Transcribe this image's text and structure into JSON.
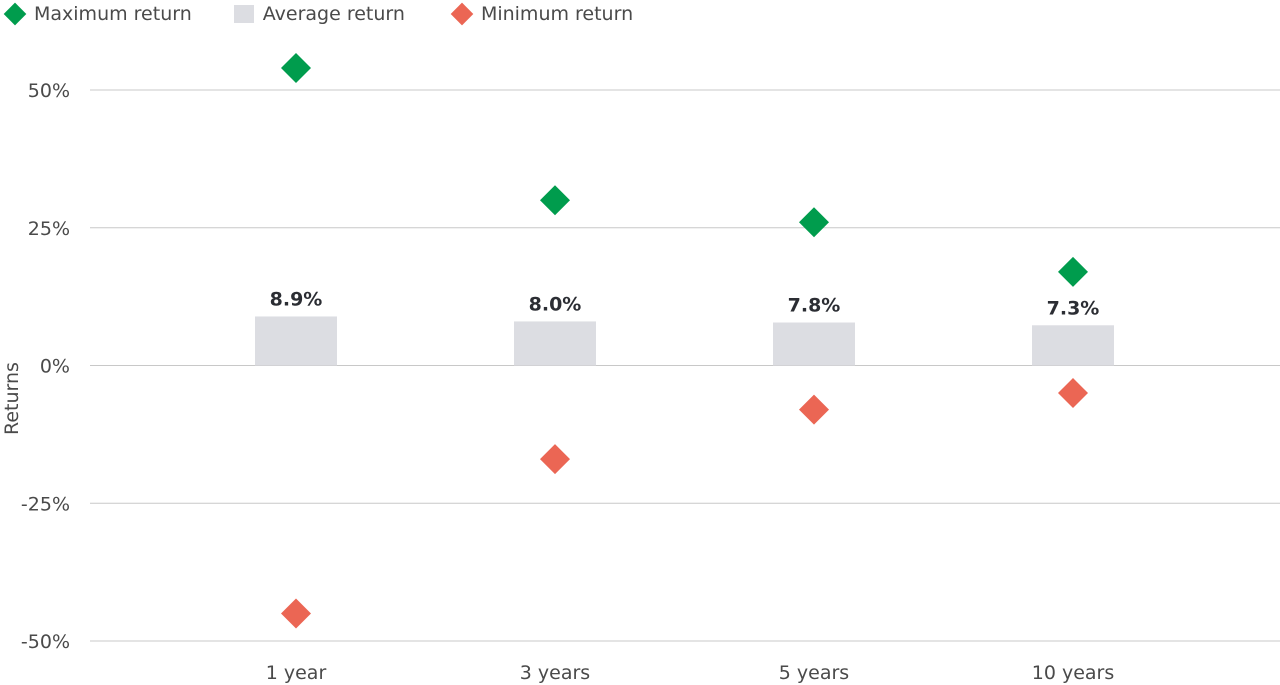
{
  "colors": {
    "maximum": "#009c4d",
    "average": "#dcdde2",
    "minimum": "#eb6654",
    "grid": "#c8c8c8",
    "text": "#4a4a4a",
    "label": "#2b2d33"
  },
  "legend": [
    {
      "label": "Maximum return",
      "marker": "diamond",
      "series": "maximum"
    },
    {
      "label": "Average return",
      "marker": "square",
      "series": "average"
    },
    {
      "label": "Minimum return",
      "marker": "diamond",
      "series": "minimum"
    }
  ],
  "chart_data": {
    "type": "bar",
    "categories": [
      "1 year",
      "3 years",
      "5 years",
      "10 years"
    ],
    "series": [
      {
        "name": "Average return",
        "key": "average",
        "kind": "bar",
        "values": [
          8.9,
          8.0,
          7.8,
          7.3
        ],
        "labels": [
          "8.9%",
          "8.0%",
          "7.8%",
          "7.3%"
        ]
      },
      {
        "name": "Maximum return",
        "key": "maximum",
        "kind": "diamond",
        "values": [
          54,
          30,
          26,
          17
        ]
      },
      {
        "name": "Minimum return",
        "key": "minimum",
        "kind": "diamond",
        "values": [
          -45,
          -17,
          -8,
          -5
        ]
      }
    ],
    "title": "",
    "xlabel": "",
    "ylabel": "Returns",
    "ylim": [
      -50,
      50
    ],
    "yticks": [
      50,
      25,
      0,
      -25,
      -50
    ],
    "ytick_labels": [
      "50%",
      "25%",
      "0%",
      "-25%",
      "-50%"
    ],
    "grid": true,
    "legend_position": "top-left"
  }
}
